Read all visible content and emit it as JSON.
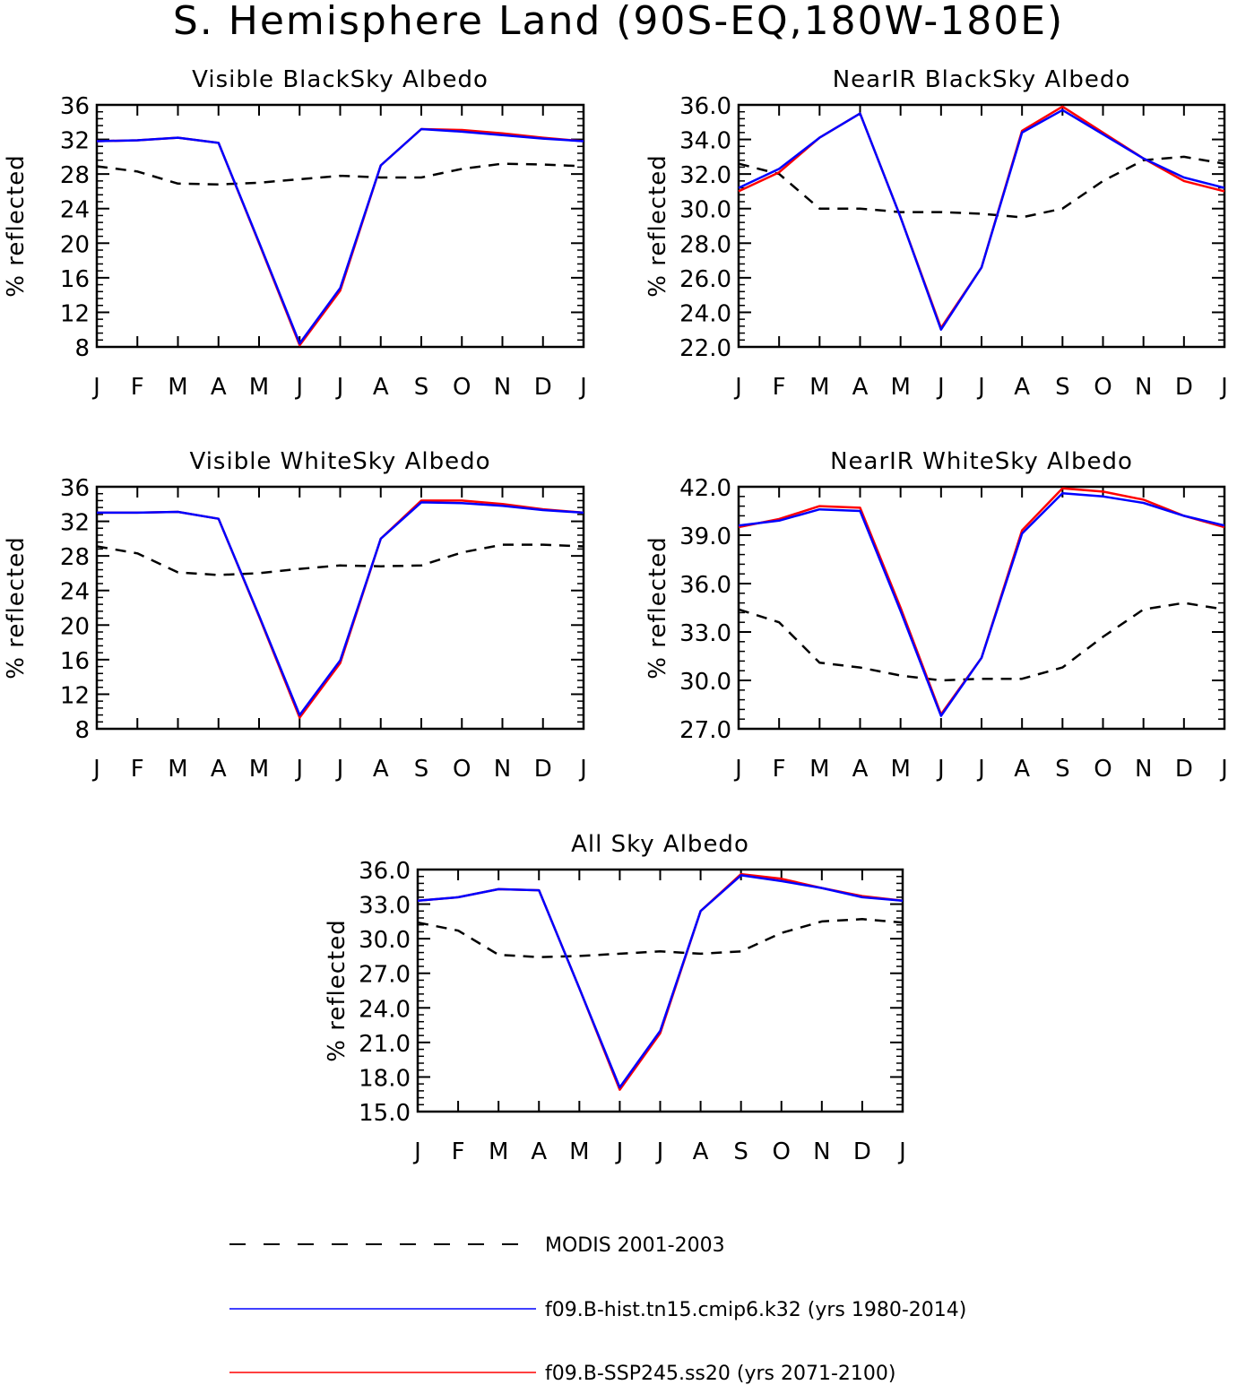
{
  "figure": {
    "title": "S. Hemisphere Land (90S-EQ,180W-180E)"
  },
  "legend": [
    {
      "label": "MODIS 2001-2003",
      "color": "#000000",
      "dash": true
    },
    {
      "label": "f09.B-hist.tn15.cmip6.k32 (yrs 1980-2014)",
      "color": "#0000ff",
      "dash": false
    },
    {
      "label": "f09.B-SSP245.ss20 (yrs 2071-2100)",
      "color": "#ff0000",
      "dash": false
    }
  ],
  "chart_data": [
    {
      "type": "line",
      "title": "Visible BlackSky Albedo",
      "ylabel": "% reflected",
      "categories": [
        "J",
        "F",
        "M",
        "A",
        "M",
        "J",
        "J",
        "A",
        "S",
        "O",
        "N",
        "D",
        "J"
      ],
      "ylim": [
        8,
        36
      ],
      "yticks": [
        "8",
        "12",
        "16",
        "20",
        "24",
        "28",
        "32",
        "36"
      ],
      "series": [
        {
          "name": "MODIS 2001-2003",
          "color": "#000000",
          "dash": true,
          "values": [
            28.9,
            28.3,
            26.9,
            26.8,
            27.0,
            27.4,
            27.8,
            27.6,
            27.6,
            28.6,
            29.2,
            29.1,
            28.9
          ]
        },
        {
          "name": "f09.B-SSP245.ss20 (yrs 2071-2100)",
          "color": "#ff0000",
          "dash": false,
          "values": [
            31.8,
            31.9,
            32.2,
            31.6,
            20.0,
            8.2,
            14.5,
            29.0,
            33.2,
            33.1,
            32.7,
            32.2,
            31.8
          ]
        },
        {
          "name": "f09.B-hist.tn15.cmip6.k32 (yrs 1980-2014)",
          "color": "#0000ff",
          "dash": false,
          "values": [
            31.8,
            31.9,
            32.2,
            31.6,
            20.1,
            8.4,
            14.8,
            29.0,
            33.2,
            32.9,
            32.5,
            32.1,
            31.8
          ]
        }
      ]
    },
    {
      "type": "line",
      "title": "NearIR BlackSky Albedo",
      "ylabel": "% reflected",
      "categories": [
        "J",
        "F",
        "M",
        "A",
        "M",
        "J",
        "J",
        "A",
        "S",
        "O",
        "N",
        "D",
        "J"
      ],
      "ylim": [
        22,
        36
      ],
      "yticks": [
        "22.0",
        "24.0",
        "26.0",
        "28.0",
        "30.0",
        "32.0",
        "34.0",
        "36.0"
      ],
      "series": [
        {
          "name": "MODIS 2001-2003",
          "color": "#000000",
          "dash": true,
          "values": [
            32.6,
            32.0,
            30.0,
            30.0,
            29.8,
            29.8,
            29.7,
            29.5,
            30.0,
            31.6,
            32.8,
            33.0,
            32.6
          ]
        },
        {
          "name": "f09.B-SSP245.ss20 (yrs 2071-2100)",
          "color": "#ff0000",
          "dash": false,
          "values": [
            31.0,
            32.1,
            34.1,
            35.5,
            29.5,
            23.1,
            26.6,
            34.5,
            35.9,
            34.4,
            32.9,
            31.6,
            31.0
          ]
        },
        {
          "name": "f09.B-hist.tn15.cmip6.k32 (yrs 1980-2014)",
          "color": "#0000ff",
          "dash": false,
          "values": [
            31.2,
            32.3,
            34.1,
            35.5,
            29.5,
            23.0,
            26.6,
            34.4,
            35.7,
            34.3,
            32.9,
            31.8,
            31.2
          ]
        }
      ]
    },
    {
      "type": "line",
      "title": "Visible WhiteSky Albedo",
      "ylabel": "% reflected",
      "categories": [
        "J",
        "F",
        "M",
        "A",
        "M",
        "J",
        "J",
        "A",
        "S",
        "O",
        "N",
        "D",
        "J"
      ],
      "ylim": [
        8,
        36
      ],
      "yticks": [
        "8",
        "12",
        "16",
        "20",
        "24",
        "28",
        "32",
        "36"
      ],
      "series": [
        {
          "name": "MODIS 2001-2003",
          "color": "#000000",
          "dash": true,
          "values": [
            29.1,
            28.3,
            26.1,
            25.8,
            26.0,
            26.5,
            26.9,
            26.8,
            26.9,
            28.4,
            29.3,
            29.3,
            29.1
          ]
        },
        {
          "name": "f09.B-SSP245.ss20 (yrs 2071-2100)",
          "color": "#ff0000",
          "dash": false,
          "values": [
            33.0,
            33.0,
            33.1,
            32.3,
            21.0,
            9.3,
            15.6,
            30.0,
            34.4,
            34.4,
            34.0,
            33.4,
            33.0
          ]
        },
        {
          "name": "f09.B-hist.tn15.cmip6.k32 (yrs 1980-2014)",
          "color": "#0000ff",
          "dash": false,
          "values": [
            33.0,
            33.0,
            33.1,
            32.3,
            21.1,
            9.6,
            15.9,
            30.0,
            34.2,
            34.1,
            33.8,
            33.3,
            33.0
          ]
        }
      ]
    },
    {
      "type": "line",
      "title": "NearIR WhiteSky Albedo",
      "ylabel": "% reflected",
      "categories": [
        "J",
        "F",
        "M",
        "A",
        "M",
        "J",
        "J",
        "A",
        "S",
        "O",
        "N",
        "D",
        "J"
      ],
      "ylim": [
        27,
        42
      ],
      "yticks": [
        "27.0",
        "30.0",
        "33.0",
        "36.0",
        "39.0",
        "42.0"
      ],
      "series": [
        {
          "name": "MODIS 2001-2003",
          "color": "#000000",
          "dash": true,
          "values": [
            34.4,
            33.6,
            31.1,
            30.8,
            30.3,
            30.0,
            30.1,
            30.1,
            30.8,
            32.7,
            34.4,
            34.8,
            34.4
          ]
        },
        {
          "name": "f09.B-SSP245.ss20 (yrs 2071-2100)",
          "color": "#ff0000",
          "dash": false,
          "values": [
            39.5,
            40.0,
            40.8,
            40.7,
            34.5,
            27.9,
            31.4,
            39.3,
            41.9,
            41.7,
            41.2,
            40.2,
            39.5
          ]
        },
        {
          "name": "f09.B-hist.tn15.cmip6.k32 (yrs 1980-2014)",
          "color": "#0000ff",
          "dash": false,
          "values": [
            39.6,
            39.9,
            40.6,
            40.5,
            34.3,
            27.8,
            31.4,
            39.1,
            41.6,
            41.4,
            41.0,
            40.2,
            39.6
          ]
        }
      ]
    },
    {
      "type": "line",
      "title": "All Sky Albedo",
      "ylabel": "% reflected",
      "categories": [
        "J",
        "F",
        "M",
        "A",
        "M",
        "J",
        "J",
        "A",
        "S",
        "O",
        "N",
        "D",
        "J"
      ],
      "ylim": [
        15,
        36
      ],
      "yticks": [
        "15.0",
        "18.0",
        "21.0",
        "24.0",
        "27.0",
        "30.0",
        "33.0",
        "36.0"
      ],
      "series": [
        {
          "name": "MODIS 2001-2003",
          "color": "#000000",
          "dash": true,
          "values": [
            31.4,
            30.7,
            28.6,
            28.4,
            28.5,
            28.7,
            28.9,
            28.7,
            28.9,
            30.5,
            31.5,
            31.7,
            31.4
          ]
        },
        {
          "name": "f09.B-SSP245.ss20 (yrs 2071-2100)",
          "color": "#ff0000",
          "dash": false,
          "values": [
            33.3,
            33.6,
            34.3,
            34.2,
            25.7,
            16.9,
            21.8,
            32.4,
            35.6,
            35.2,
            34.4,
            33.7,
            33.3
          ]
        },
        {
          "name": "f09.B-hist.tn15.cmip6.k32 (yrs 1980-2014)",
          "color": "#0000ff",
          "dash": false,
          "values": [
            33.3,
            33.6,
            34.3,
            34.2,
            25.7,
            17.1,
            22.0,
            32.4,
            35.5,
            35.0,
            34.4,
            33.6,
            33.3
          ]
        }
      ]
    }
  ]
}
